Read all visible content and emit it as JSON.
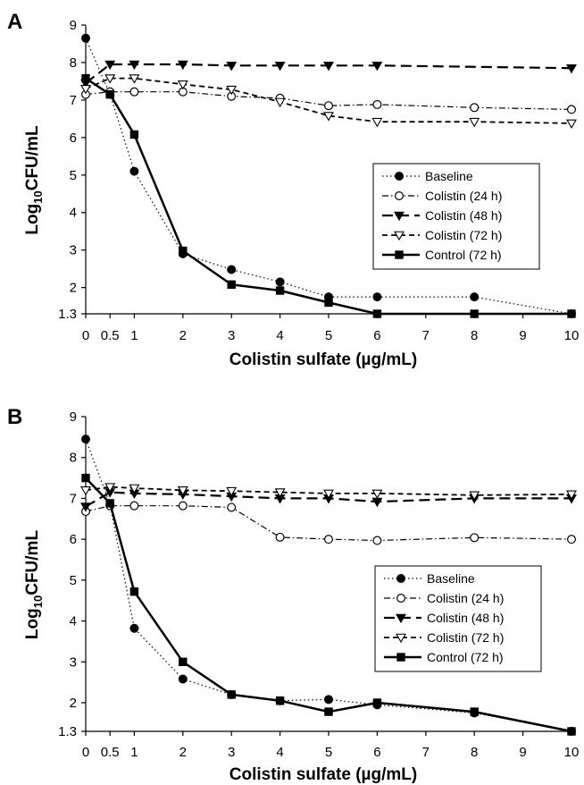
{
  "chart_data": [
    {
      "type": "line",
      "panel": "A",
      "xlabel": "Colistin sulfate (µg/mL)",
      "ylabel_main": "Log",
      "ylabel_sub": "10",
      "ylabel_rest": "CFU/mL",
      "x_ticks": [
        "0",
        "0.5",
        "1",
        "2",
        "3",
        "4",
        "5",
        "6",
        "7",
        "8",
        "9",
        "10"
      ],
      "y_ticks": [
        "1.3",
        "2",
        "3",
        "4",
        "5",
        "6",
        "7",
        "8",
        "9"
      ],
      "xlim": [
        0,
        10
      ],
      "ylim": [
        1.3,
        9
      ],
      "legend_position": "center-right",
      "series": [
        {
          "name": "Baseline",
          "style": "dotted-filled-circle",
          "x": [
            0,
            0.5,
            1,
            2,
            3,
            4,
            5,
            6,
            8,
            10
          ],
          "y": [
            8.65,
            7.15,
            5.1,
            2.9,
            2.48,
            2.15,
            1.75,
            1.75,
            1.75,
            1.3
          ]
        },
        {
          "name": "Colistin (24 h)",
          "style": "dashdot-open-circle",
          "x": [
            0,
            0.5,
            1,
            2,
            3,
            4,
            5,
            6,
            8,
            10
          ],
          "y": [
            7.15,
            7.22,
            7.22,
            7.22,
            7.1,
            7.05,
            6.85,
            6.88,
            6.8,
            6.75
          ]
        },
        {
          "name": "Colistin (48 h)",
          "style": "longdash-filled-triangle",
          "x": [
            0,
            0.5,
            1,
            2,
            3,
            4,
            5,
            6,
            10
          ],
          "y": [
            7.45,
            7.95,
            7.95,
            7.95,
            7.92,
            7.92,
            7.92,
            7.92,
            7.85
          ]
        },
        {
          "name": "Colistin (72 h)",
          "style": "dash-open-triangle",
          "x": [
            0,
            0.5,
            1,
            2,
            3,
            4,
            5,
            6,
            8,
            10
          ],
          "y": [
            7.3,
            7.58,
            7.58,
            7.42,
            7.28,
            6.95,
            6.58,
            6.42,
            6.42,
            6.38
          ]
        },
        {
          "name": "Control (72 h)",
          "style": "solid-filled-square",
          "x": [
            0,
            0.5,
            1,
            2,
            3,
            4,
            5,
            6,
            8,
            10
          ],
          "y": [
            7.58,
            7.15,
            6.08,
            2.98,
            2.08,
            1.92,
            1.6,
            1.3,
            1.3,
            1.3
          ]
        }
      ]
    },
    {
      "type": "line",
      "panel": "B",
      "xlabel": "Colistin sulfate (µg/mL)",
      "ylabel_main": "Log",
      "ylabel_sub": "10",
      "ylabel_rest": "CFU/mL",
      "x_ticks": [
        "0",
        "0.5",
        "1",
        "2",
        "3",
        "4",
        "5",
        "6",
        "7",
        "8",
        "9",
        "10"
      ],
      "y_ticks": [
        "1.3",
        "2",
        "3",
        "4",
        "5",
        "6",
        "7",
        "8",
        "9"
      ],
      "xlim": [
        0,
        10
      ],
      "ylim": [
        1.3,
        9
      ],
      "legend_position": "center-right",
      "series": [
        {
          "name": "Baseline",
          "style": "dotted-filled-circle",
          "x": [
            0,
            0.5,
            1,
            2,
            3,
            4,
            5,
            6,
            8,
            10
          ],
          "y": [
            8.45,
            6.85,
            3.82,
            2.58,
            2.2,
            2.05,
            2.08,
            1.95,
            1.75,
            1.3
          ]
        },
        {
          "name": "Colistin (24 h)",
          "style": "dashdot-open-circle",
          "x": [
            0,
            0.5,
            1,
            2,
            3,
            4,
            5,
            6,
            8,
            10
          ],
          "y": [
            6.68,
            6.82,
            6.82,
            6.82,
            6.78,
            6.05,
            6.0,
            5.97,
            6.04,
            6.0
          ]
        },
        {
          "name": "Colistin (48 h)",
          "style": "longdash-filled-triangle",
          "x": [
            0,
            0.5,
            1,
            2,
            3,
            4,
            5,
            6,
            8,
            10
          ],
          "y": [
            6.8,
            7.15,
            7.12,
            7.1,
            7.05,
            7.0,
            7.0,
            6.92,
            7.0,
            7.0
          ]
        },
        {
          "name": "Colistin (72 h)",
          "style": "dash-open-triangle",
          "x": [
            0,
            0.5,
            1,
            2,
            3,
            4,
            5,
            6,
            8,
            10
          ],
          "y": [
            7.2,
            7.28,
            7.25,
            7.2,
            7.18,
            7.15,
            7.12,
            7.12,
            7.08,
            7.1
          ]
        },
        {
          "name": "Control (72 h)",
          "style": "solid-filled-square",
          "x": [
            0,
            0.5,
            1,
            2,
            3,
            4,
            5,
            6,
            8,
            10
          ],
          "y": [
            7.5,
            6.88,
            4.72,
            3.0,
            2.2,
            2.05,
            1.78,
            2.0,
            1.78,
            1.3
          ]
        }
      ]
    }
  ]
}
